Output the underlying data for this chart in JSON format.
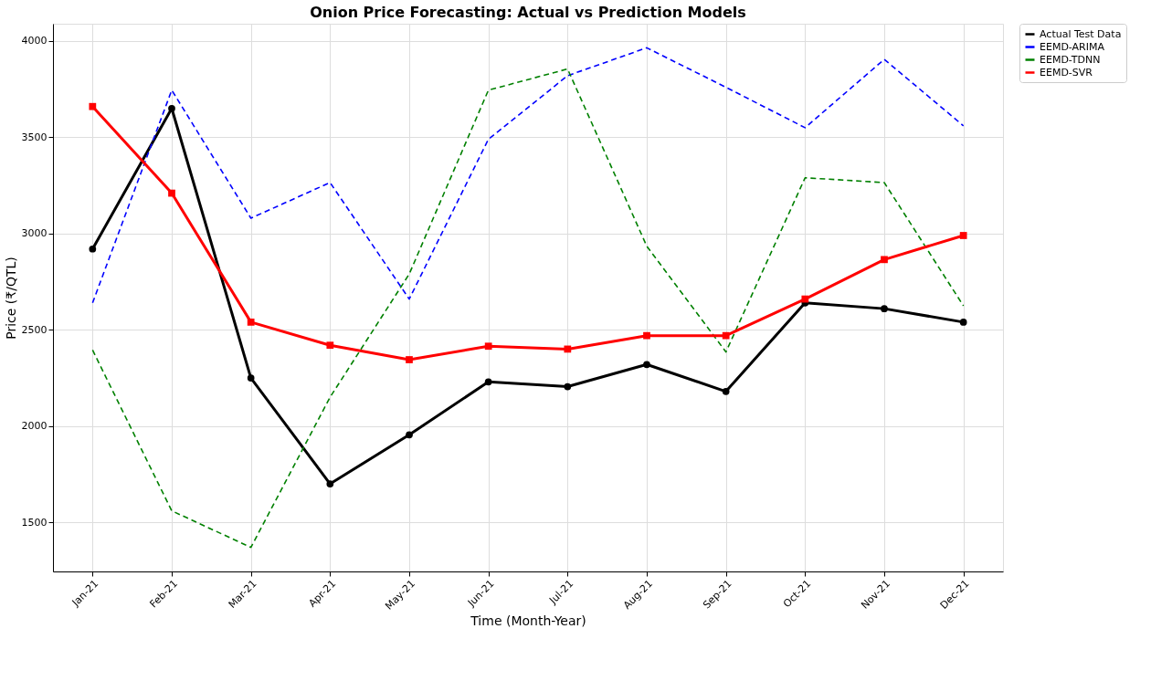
{
  "chart_data": {
    "type": "line",
    "title": "Onion Price Forecasting: Actual vs Prediction Models",
    "xlabel": "Time (Month-Year)",
    "ylabel": "Price (₹/QTL)",
    "categories": [
      "Jan-21",
      "Feb-21",
      "Mar-21",
      "Apr-21",
      "May-21",
      "Jun-21",
      "Jul-21",
      "Aug-21",
      "Sep-21",
      "Oct-21",
      "Nov-21",
      "Dec-21"
    ],
    "series": [
      {
        "name": "Actual Test Data",
        "color": "#000000",
        "marker": "circle",
        "line_style": "solid",
        "values": [
          2920,
          3650,
          2250,
          1700,
          1955,
          2230,
          2205,
          2320,
          2180,
          2640,
          2610,
          2540
        ]
      },
      {
        "name": "EEMD-ARIMA",
        "color": "#0000ff",
        "marker": "none",
        "line_style": "dashed",
        "values": [
          2640,
          3745,
          3080,
          3265,
          2660,
          3490,
          3820,
          3965,
          3760,
          3550,
          3905,
          3560
        ]
      },
      {
        "name": "EEMD-TDNN",
        "color": "#008000",
        "marker": "none",
        "line_style": "dashed",
        "values": [
          2395,
          1560,
          1370,
          2150,
          2790,
          3745,
          3855,
          2935,
          2385,
          3290,
          3265,
          2625
        ]
      },
      {
        "name": "EEMD-SVR",
        "color": "#ff0000",
        "marker": "square",
        "line_style": "solid",
        "values": [
          3660,
          3210,
          2540,
          2420,
          2345,
          2415,
          2400,
          2470,
          2470,
          2660,
          2865,
          2990
        ]
      }
    ],
    "ylim": [
      1245,
      4090
    ],
    "yticks": [
      1500,
      2000,
      2500,
      3000,
      3500,
      4000
    ],
    "grid": true,
    "legend": "top right"
  }
}
